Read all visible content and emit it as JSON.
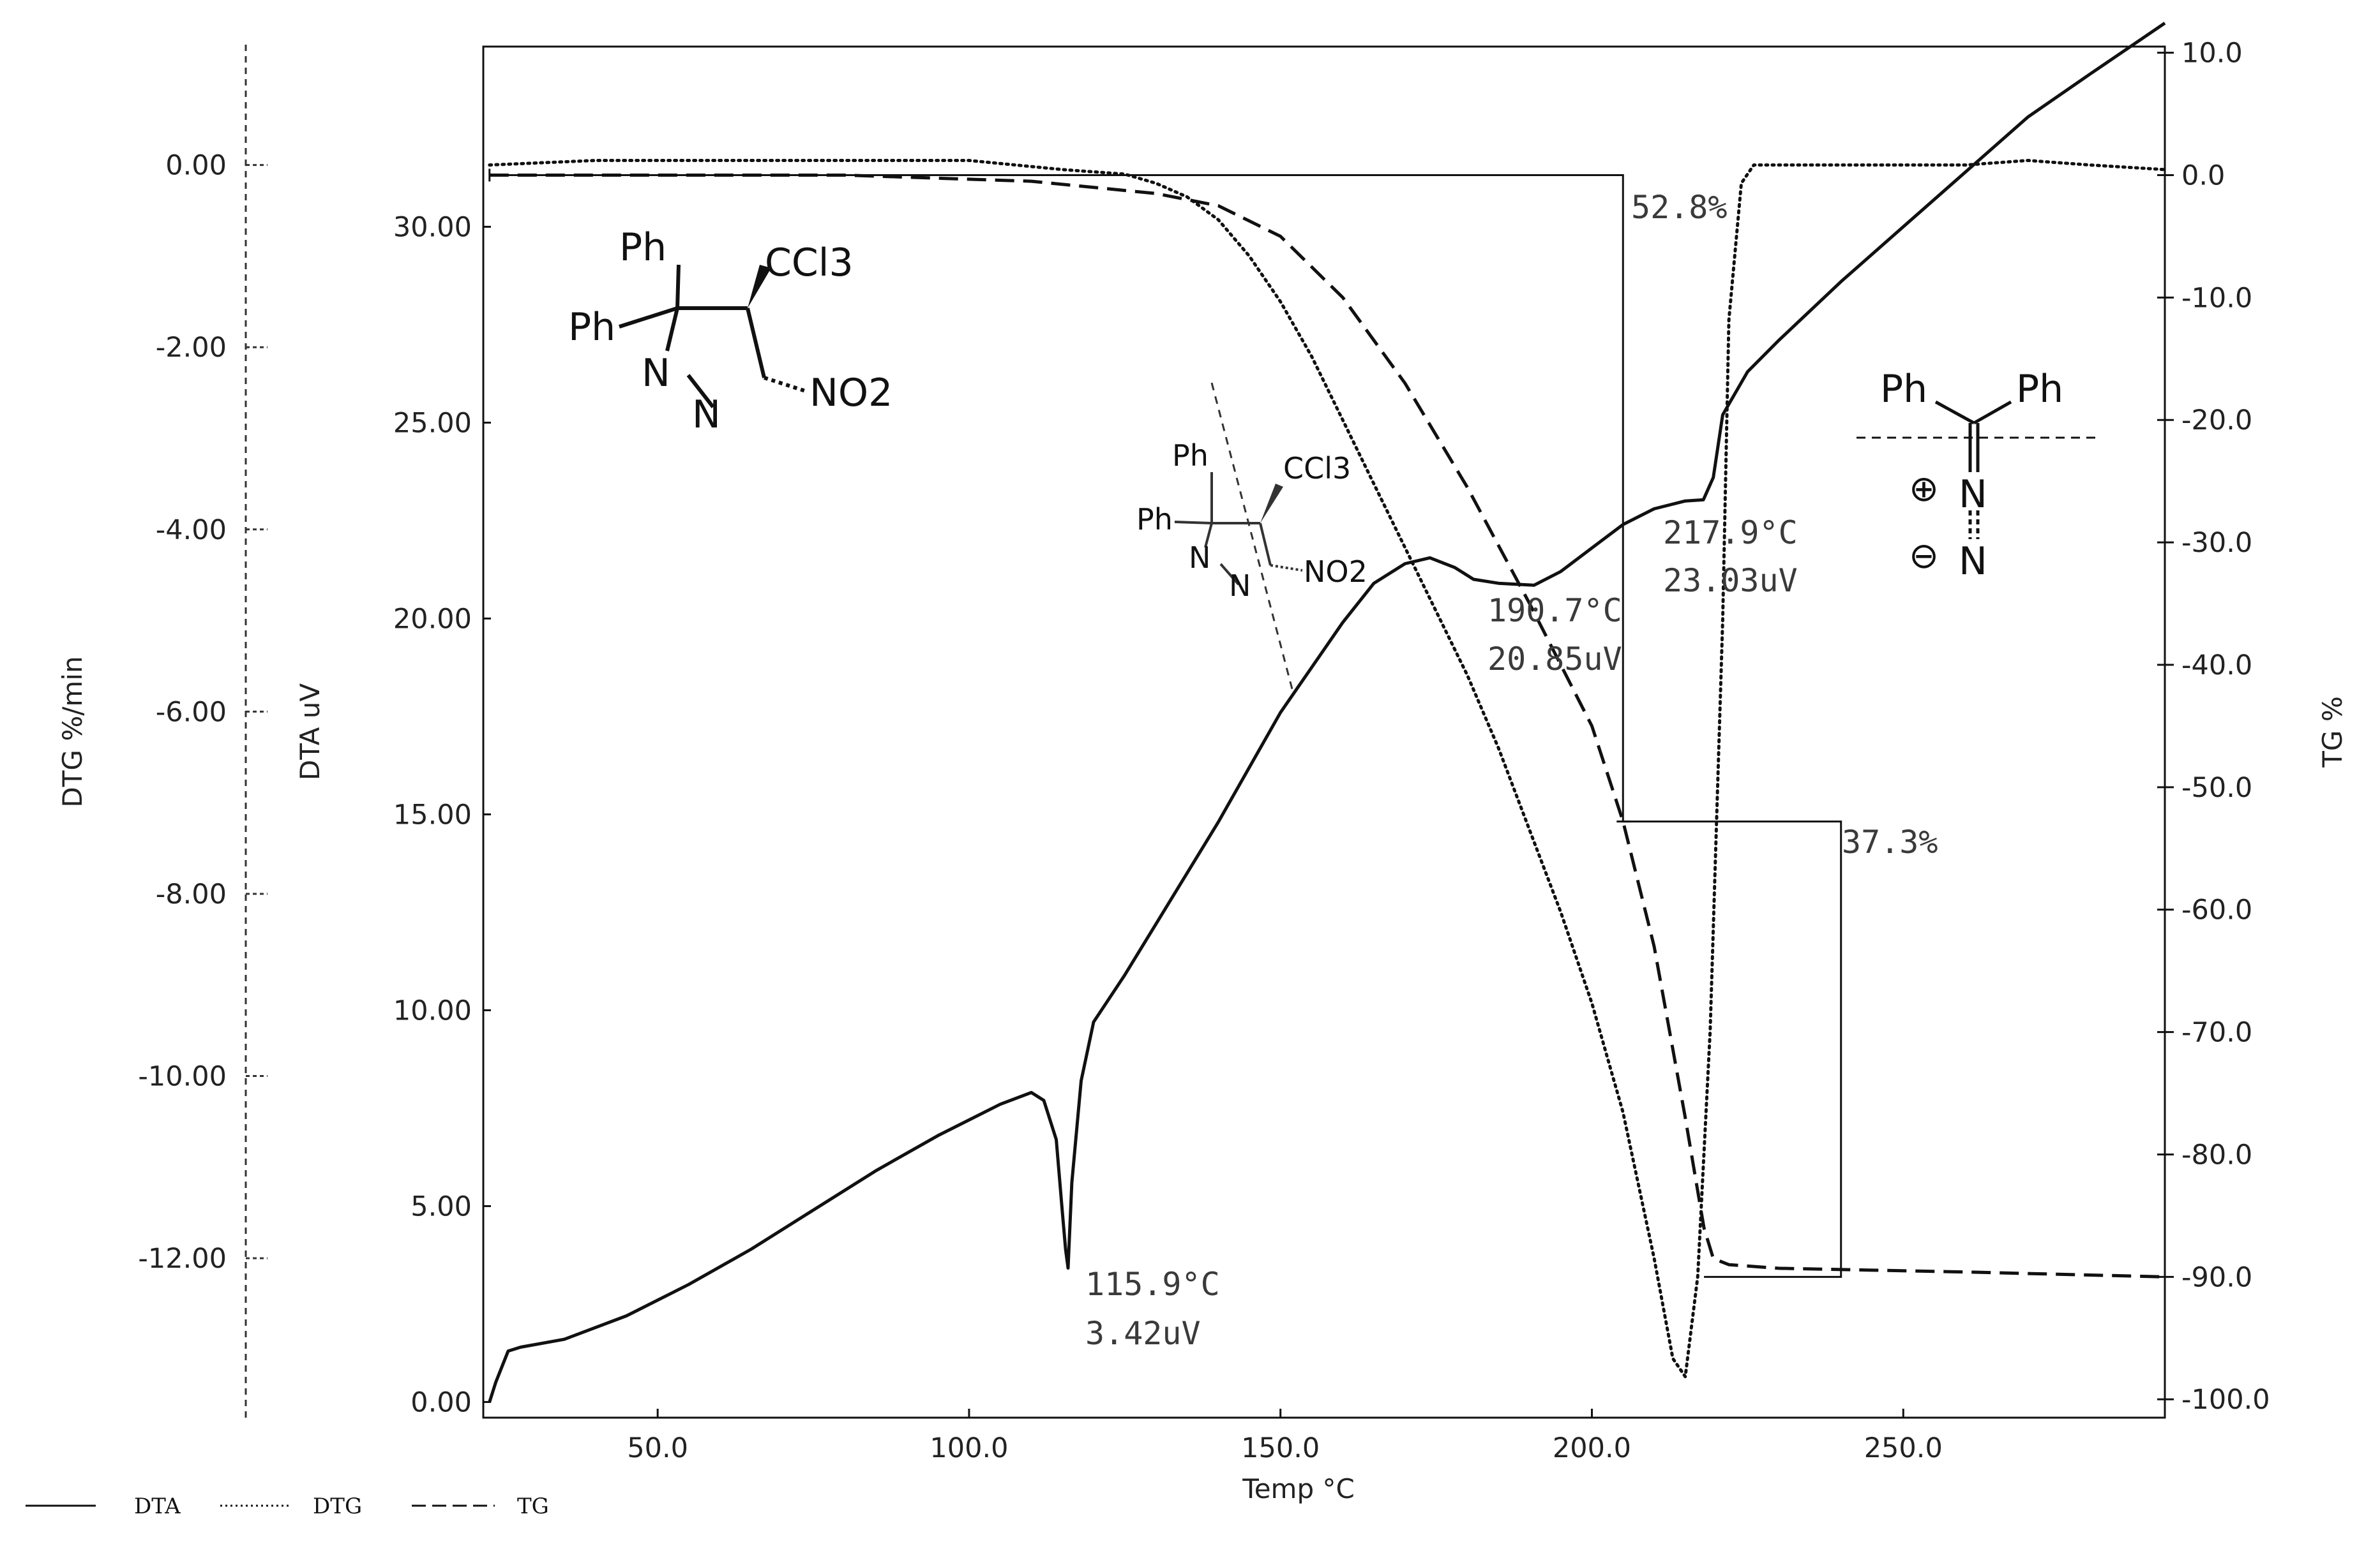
{
  "chart_data": {
    "type": "line",
    "xlabel": "Temp °C",
    "xlim": [
      22,
      292
    ],
    "x_ticks": [
      "50.0",
      "100.0",
      "150.0",
      "200.0",
      "250.0"
    ],
    "axes": {
      "dtg": {
        "label": "DTG %/min",
        "lim": [
          -13.75,
          1.3
        ],
        "ticks": [
          "0.00",
          "-2.00",
          "-4.00",
          "-6.00",
          "-8.00",
          "-10.00",
          "-12.00"
        ]
      },
      "dta": {
        "label": "DTA uV",
        "lim": [
          -0.4,
          34.6
        ],
        "ticks": [
          "30.00",
          "25.00",
          "20.00",
          "15.00",
          "10.00",
          "5.00",
          "0.00"
        ]
      },
      "tg": {
        "label": "TG %",
        "lim": [
          -101.5,
          10.5
        ],
        "ticks": [
          "10.0",
          "0.0",
          "-10.0",
          "-20.0",
          "-30.0",
          "-40.0",
          "-50.0",
          "-60.0",
          "-70.0",
          "-80.0",
          "-90.0",
          "-100.0"
        ]
      }
    },
    "series": [
      {
        "name": "DTA",
        "axis": "dta",
        "style": "solid",
        "x": [
          23,
          24,
          26,
          28,
          35,
          45,
          55,
          65,
          75,
          85,
          95,
          105,
          110,
          112,
          114,
          115,
          115.5,
          115.9,
          116.5,
          118,
          120,
          125,
          130,
          140,
          150,
          160,
          165,
          170,
          174,
          178,
          181,
          185,
          190.7,
          195,
          200,
          205,
          210,
          215,
          217.9,
          219.5,
          221,
          225,
          230,
          240,
          250,
          260,
          270,
          280,
          292
        ],
        "y": [
          0.0,
          0.5,
          1.3,
          1.4,
          1.6,
          2.2,
          3.0,
          3.9,
          4.9,
          5.9,
          6.8,
          7.6,
          7.9,
          7.7,
          6.7,
          4.8,
          3.9,
          3.42,
          5.6,
          8.2,
          9.7,
          10.9,
          12.2,
          14.8,
          17.6,
          19.9,
          20.9,
          21.4,
          21.55,
          21.3,
          21.0,
          20.9,
          20.85,
          21.2,
          21.8,
          22.4,
          22.8,
          23.0,
          23.03,
          23.6,
          25.2,
          26.3,
          27.1,
          28.6,
          30.0,
          31.4,
          32.8,
          33.9,
          35.2
        ]
      },
      {
        "name": "DTG",
        "axis": "dtg",
        "style": "dotted",
        "x": [
          23,
          40,
          60,
          80,
          100,
          115,
          125,
          130,
          135,
          140,
          145,
          150,
          155,
          160,
          165,
          170,
          175,
          180,
          185,
          190,
          195,
          200,
          205,
          210,
          213,
          215,
          217,
          219,
          221,
          222,
          224,
          226,
          230,
          240,
          250,
          260,
          270,
          280,
          292
        ],
        "y": [
          0.0,
          0.05,
          0.05,
          0.05,
          0.05,
          -0.05,
          -0.1,
          -0.2,
          -0.35,
          -0.6,
          -1.0,
          -1.5,
          -2.1,
          -2.8,
          -3.5,
          -4.2,
          -4.9,
          -5.6,
          -6.4,
          -7.3,
          -8.2,
          -9.2,
          -10.4,
          -12.0,
          -13.1,
          -13.3,
          -12.2,
          -9.5,
          -5.0,
          -1.7,
          -0.2,
          0.0,
          0.0,
          0.0,
          0.0,
          0.0,
          0.05,
          0.0,
          -0.05
        ]
      },
      {
        "name": "TG",
        "axis": "tg",
        "style": "dashed",
        "x": [
          23,
          50,
          80,
          110,
          130,
          140,
          150,
          160,
          170,
          180,
          190,
          200,
          205,
          210,
          215,
          218,
          219.5,
          222,
          230,
          260,
          292
        ],
        "y": [
          0.0,
          0.0,
          0.0,
          -0.5,
          -1.5,
          -2.5,
          -5.0,
          -10.0,
          -17.0,
          -25.5,
          -35.0,
          -45.0,
          -52.8,
          -63.0,
          -77.0,
          -86.0,
          -88.5,
          -89.0,
          -89.3,
          -89.6,
          -90.0
        ]
      }
    ],
    "annotations": [
      {
        "lines": [
          "115.9°C",
          "3.42uV"
        ]
      },
      {
        "lines": [
          "190.7°C",
          "20.85uV"
        ]
      },
      {
        "lines": [
          "217.9°C",
          "23.03uV"
        ]
      },
      {
        "lines": [
          "52.8%"
        ]
      },
      {
        "lines": [
          "37.3%"
        ]
      }
    ],
    "legend": {
      "placement": "bottom-left",
      "entries": [
        "DTA",
        "DTG",
        "TG"
      ]
    },
    "grid": false
  },
  "structures": {
    "reactant": {
      "ph1": "Ph",
      "ph2": "Ph",
      "ccl3": "CCl3",
      "n1": "N",
      "n2": "N",
      "no2": "NO2"
    },
    "fragment": {
      "ph1": "Ph",
      "ph2": "Ph",
      "ccl3": "CCl3",
      "n1": "N",
      "n2": "N",
      "no2": "NO2"
    },
    "product": {
      "ph1": "Ph",
      "ph2": "Ph",
      "n1": "N",
      "n2": "N",
      "plus": "⊕",
      "minus": "⊖"
    }
  }
}
